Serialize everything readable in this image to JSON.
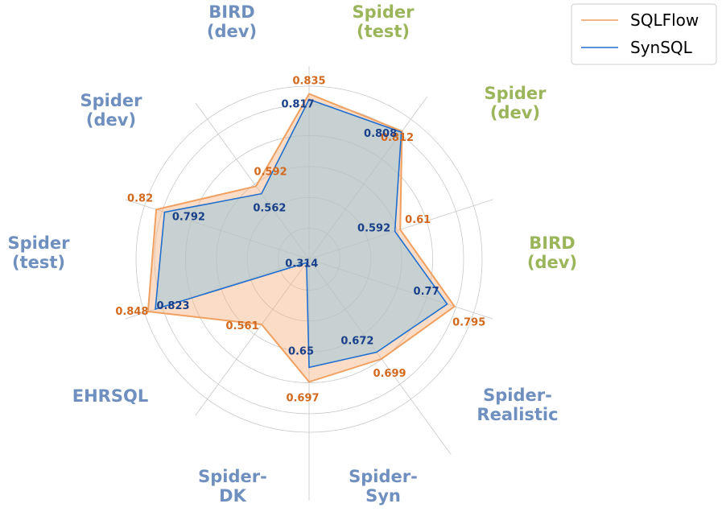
{
  "chart_data": {
    "type": "radar",
    "axes": [
      {
        "label": [
          "Spider",
          "(test)"
        ],
        "color": "#9bb55a"
      },
      {
        "label": [
          "Spider",
          "(dev)"
        ],
        "color": "#9bb55a"
      },
      {
        "label": [
          "BIRD",
          "(dev)"
        ],
        "color": "#9bb55a"
      },
      {
        "label": [
          "Spider-",
          "Realistic"
        ],
        "color": "#6f8fbf"
      },
      {
        "label": [
          "Spider-",
          "Syn"
        ],
        "color": "#6f8fbf"
      },
      {
        "label": [
          "Spider-",
          "DK"
        ],
        "color": "#6f8fbf"
      },
      {
        "label": [
          "EHRSQL"
        ],
        "color": "#6f8fbf"
      },
      {
        "label": [
          "Spider",
          "(test)"
        ],
        "color": "#6f8fbf"
      },
      {
        "label": [
          "Spider",
          "(dev)"
        ],
        "color": "#6f8fbf"
      },
      {
        "label": [
          "BIRD",
          "(dev)"
        ],
        "color": "#6f8fbf"
      }
    ],
    "series": [
      {
        "name": "SQLFlow",
        "color": "#f0a060",
        "label_color": "#d2691e",
        "values": [
          0.835,
          0.812,
          0.61,
          0.795,
          0.699,
          0.697,
          0.561,
          0.848,
          0.82,
          0.592
        ],
        "labels": [
          "0.835",
          "0.812",
          "0.61",
          "0.795",
          "0.699",
          "0.697",
          "0.561",
          "0.848",
          "0.82",
          "0.592"
        ]
      },
      {
        "name": "SynSQL",
        "color": "#1f6fd0",
        "label_color": "#1a3f8a",
        "values": [
          0.817,
          0.808,
          0.592,
          0.77,
          0.672,
          0.65,
          0.314,
          0.823,
          0.792,
          0.562
        ],
        "labels": [
          "0.817",
          "0.808",
          "0.592",
          "0.77",
          "0.672",
          "0.65",
          "0.314",
          "0.823",
          "0.792",
          "0.562"
        ]
      }
    ],
    "grid": true,
    "legend": "top-right"
  }
}
